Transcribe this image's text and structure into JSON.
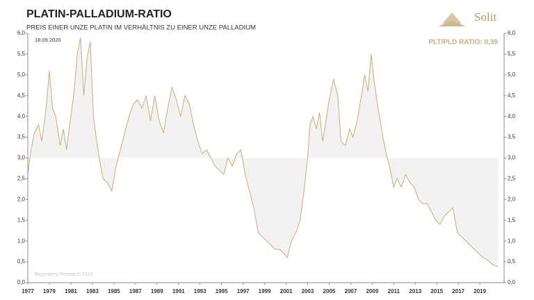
{
  "chart_data": {
    "type": "line",
    "title": "PLATIN-PALLADIUM-RATIO",
    "subtitle": "PREIS EINER UNZE PLATIN IM VERHÄLTNIS ZU EINER UNZE PALLADIUM",
    "date_label": "18.09.2020",
    "annotation": "PLT/PLD RATIO: 0,39",
    "source": "Bloomberg Research 2020",
    "logo": "Solit",
    "fill_baseline": 3,
    "series": [
      {
        "name": "Platin/Palladium",
        "color": "#c9ac76",
        "x": [
          1977.0,
          1977.3,
          1977.6,
          1978.0,
          1978.3,
          1978.7,
          1979.0,
          1979.3,
          1979.6,
          1980.0,
          1980.3,
          1980.6,
          1981.0,
          1981.3,
          1981.6,
          1981.9,
          1982.2,
          1982.5,
          1982.8,
          1983.1,
          1983.4,
          1983.7,
          1984.0,
          1984.4,
          1984.8,
          1985.2,
          1985.6,
          1986.0,
          1986.4,
          1986.8,
          1987.2,
          1987.6,
          1988.0,
          1988.4,
          1988.8,
          1989.2,
          1989.6,
          1990.0,
          1990.4,
          1990.8,
          1991.2,
          1991.6,
          1992.0,
          1992.4,
          1992.8,
          1993.2,
          1993.6,
          1994.0,
          1994.4,
          1994.8,
          1995.2,
          1995.6,
          1996.0,
          1996.4,
          1996.8,
          1997.2,
          1997.6,
          1998.0,
          1998.4,
          1998.8,
          1999.2,
          1999.6,
          2000.0,
          2000.4,
          2000.8,
          2001.1,
          2001.5,
          2001.9,
          2002.3,
          2002.7,
          2003.0,
          2003.2,
          2003.5,
          2003.8,
          2004.1,
          2004.4,
          2004.7,
          2005.0,
          2005.4,
          2005.8,
          2006.1,
          2006.5,
          2006.9,
          2007.2,
          2007.6,
          2008.0,
          2008.3,
          2008.6,
          2008.9,
          2009.2,
          2009.6,
          2010.0,
          2010.3,
          2010.6,
          2011.0,
          2011.3,
          2011.7,
          2012.1,
          2012.5,
          2012.9,
          2013.3,
          2013.7,
          2014.1,
          2014.5,
          2014.9,
          2015.3,
          2015.7,
          2016.1,
          2016.5,
          2016.9,
          2017.3,
          2017.7,
          2018.1,
          2018.5,
          2018.9,
          2019.3,
          2019.7,
          2020.1,
          2020.4,
          2020.7
        ],
        "values": [
          2.6,
          3.2,
          3.6,
          3.8,
          3.4,
          4.2,
          5.1,
          4.2,
          4.0,
          3.3,
          3.7,
          3.2,
          4.0,
          4.6,
          5.5,
          5.9,
          4.5,
          5.4,
          5.8,
          4.0,
          3.4,
          2.9,
          2.5,
          2.4,
          2.2,
          2.8,
          3.2,
          3.6,
          4.0,
          4.3,
          4.4,
          4.2,
          4.5,
          3.9,
          4.5,
          3.9,
          3.6,
          4.2,
          4.7,
          4.4,
          4.0,
          4.5,
          4.3,
          3.8,
          3.4,
          3.1,
          3.2,
          3.0,
          2.8,
          2.7,
          2.6,
          3.0,
          2.8,
          3.1,
          3.2,
          2.6,
          2.2,
          1.8,
          1.2,
          1.1,
          1.0,
          0.9,
          0.8,
          0.8,
          0.7,
          0.6,
          1.0,
          1.2,
          1.5,
          2.3,
          3.0,
          3.8,
          4.0,
          3.7,
          4.1,
          3.4,
          3.9,
          4.4,
          4.9,
          4.5,
          3.4,
          3.3,
          3.7,
          3.5,
          3.9,
          4.5,
          5.0,
          4.6,
          5.5,
          4.8,
          4.1,
          3.5,
          3.1,
          2.8,
          2.3,
          2.5,
          2.3,
          2.6,
          2.4,
          2.3,
          2.0,
          1.9,
          1.9,
          1.7,
          1.5,
          1.4,
          1.6,
          1.7,
          1.8,
          1.2,
          1.1,
          1.0,
          0.9,
          0.8,
          0.7,
          0.6,
          0.55,
          0.45,
          0.4,
          0.39
        ]
      }
    ],
    "xlim": [
      1977,
      2021.25
    ],
    "xticks": [
      1977,
      1979,
      1981,
      1983,
      1985,
      1987,
      1989,
      1991,
      1993,
      1995,
      1997,
      1999,
      2001,
      2003,
      2005,
      2007,
      2009,
      2011,
      2013,
      2015,
      2017,
      2019
    ],
    "ylim": [
      0,
      6
    ],
    "yticks": [
      {
        "value": 0,
        "label": "0,0"
      },
      {
        "value": 0.5,
        "label": "0,5"
      },
      {
        "value": 1,
        "label": "1,0"
      },
      {
        "value": 1.5,
        "label": "1,5"
      },
      {
        "value": 2,
        "label": "2,0"
      },
      {
        "value": 2.5,
        "label": "2,5"
      },
      {
        "value": 3,
        "label": "3,0"
      },
      {
        "value": 3.5,
        "label": "3,5"
      },
      {
        "value": 4,
        "label": "4,0"
      },
      {
        "value": 4.5,
        "label": "4,5"
      },
      {
        "value": 5,
        "label": "5,0"
      },
      {
        "value": 5.5,
        "label": "5,5"
      },
      {
        "value": 6,
        "label": "6,0"
      }
    ],
    "right_axis": true
  }
}
